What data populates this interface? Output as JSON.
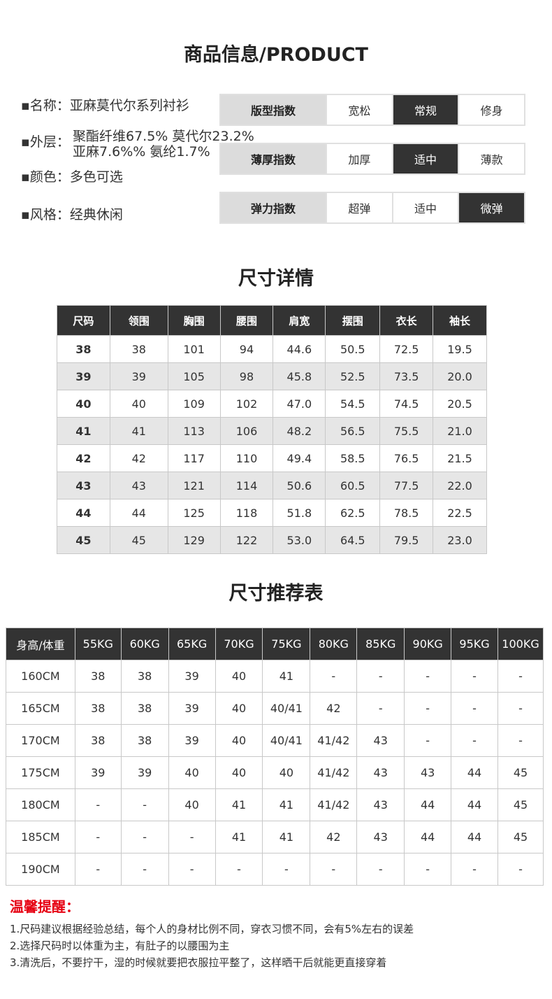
{
  "title": "商品信息/PRODUCT",
  "info": {
    "name": "▪名称：亚麻莫代尔系列衬衫",
    "layer_label": "▪外层：",
    "layer_line1": "聚酯纤维67.5% 莫代尔23.2%",
    "layer_line2": "亚麻7.6%%  氨纶1.7%",
    "color": "▪颜色：多色可选",
    "style": "▪风格：经典休闲"
  },
  "indices": [
    {
      "label": "版型指数",
      "options": [
        "宽松",
        "常规",
        "修身"
      ],
      "selected": 1
    },
    {
      "label": "薄厚指数",
      "options": [
        "加厚",
        "适中",
        "薄款"
      ],
      "selected": 1
    },
    {
      "label": "弹力指数",
      "options": [
        "超弹",
        "适中",
        "微弹"
      ],
      "selected": 2
    }
  ],
  "size_title": "尺寸详情",
  "size_table": {
    "headers": [
      "尺码",
      "领围",
      "胸围",
      "腰围",
      "肩宽",
      "摆围",
      "衣长",
      "袖长"
    ],
    "rows": [
      [
        "38",
        "38",
        "101",
        "94",
        "44.6",
        "50.5",
        "72.5",
        "19.5"
      ],
      [
        "39",
        "39",
        "105",
        "98",
        "45.8",
        "52.5",
        "73.5",
        "20.0"
      ],
      [
        "40",
        "40",
        "109",
        "102",
        "47.0",
        "54.5",
        "74.5",
        "20.5"
      ],
      [
        "41",
        "41",
        "113",
        "106",
        "48.2",
        "56.5",
        "75.5",
        "21.0"
      ],
      [
        "42",
        "42",
        "117",
        "110",
        "49.4",
        "58.5",
        "76.5",
        "21.5"
      ],
      [
        "43",
        "43",
        "121",
        "114",
        "50.6",
        "60.5",
        "77.5",
        "22.0"
      ],
      [
        "44",
        "44",
        "125",
        "118",
        "51.8",
        "62.5",
        "78.5",
        "22.5"
      ],
      [
        "45",
        "45",
        "129",
        "122",
        "53.0",
        "64.5",
        "79.5",
        "23.0"
      ]
    ]
  },
  "rec_title": "尺寸推荐表",
  "rec_table": {
    "headers": [
      "身高/体重",
      "55KG",
      "60KG",
      "65KG",
      "70KG",
      "75KG",
      "80KG",
      "85KG",
      "90KG",
      "95KG",
      "100KG"
    ],
    "rows": [
      [
        "160CM",
        "38",
        "38",
        "39",
        "40",
        "41",
        "-",
        "-",
        "-",
        "-",
        "-"
      ],
      [
        "165CM",
        "38",
        "38",
        "39",
        "40",
        "40/41",
        "42",
        "-",
        "-",
        "-",
        "-"
      ],
      [
        "170CM",
        "38",
        "38",
        "39",
        "40",
        "40/41",
        "41/42",
        "43",
        "-",
        "-",
        "-"
      ],
      [
        "175CM",
        "39",
        "39",
        "40",
        "40",
        "40",
        "41/42",
        "43",
        "43",
        "44",
        "45"
      ],
      [
        "180CM",
        "-",
        "-",
        "40",
        "41",
        "41",
        "41/42",
        "43",
        "44",
        "44",
        "45"
      ],
      [
        "185CM",
        "-",
        "-",
        "-",
        "41",
        "41",
        "42",
        "43",
        "44",
        "44",
        "45"
      ],
      [
        "190CM",
        "-",
        "-",
        "-",
        "-",
        "-",
        "-",
        "-",
        "-",
        "-",
        "-"
      ]
    ]
  },
  "warning_title": "温馨提醒：",
  "notes": [
    "1.尺码建议根据经验总结，每个人的身材比例不同，穿衣习惯不同，会有5%左右的误差",
    "2.选择尺码时以体重为主，有肚子的以腰围为主",
    "3.清洗后，不要拧干，湿的时候就要把衣服拉平整了，这样晒干后就能更直接穿着"
  ]
}
